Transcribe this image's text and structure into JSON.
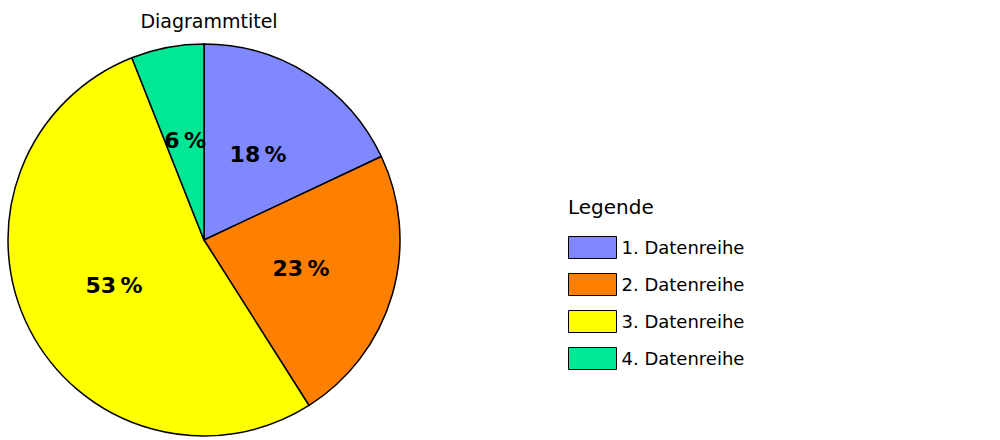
{
  "chart_data": {
    "type": "pie",
    "title": "Diagrammtitel",
    "legend_title": "Legende",
    "categories": [
      "1. Datenreihe",
      "2. Datenreihe",
      "3. Datenreihe",
      "4. Datenreihe"
    ],
    "values": [
      18,
      23,
      53,
      6
    ],
    "value_labels": [
      "18 %",
      "23 %",
      "53 %",
      "6 %"
    ],
    "colors": [
      "#8088ff",
      "#ff7f00",
      "#ffff00",
      "#00e896"
    ],
    "data_labels": true,
    "legend": "right"
  }
}
